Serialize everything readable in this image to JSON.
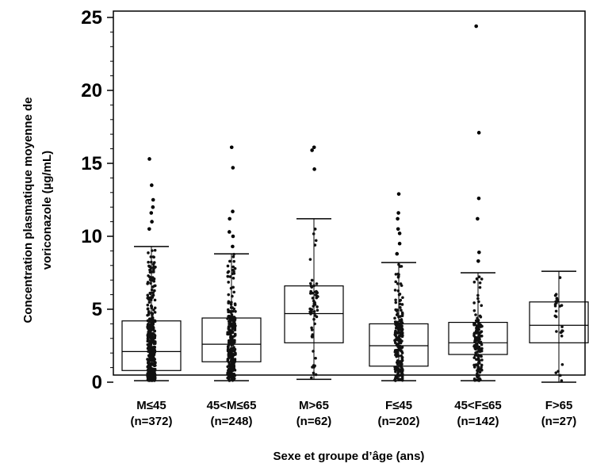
{
  "chart_data": {
    "type": "box",
    "title": "",
    "xlabel": "Sexe et groupe d’âge (ans)",
    "ylabel_lines": [
      "Concentration plasmatique moyenne de",
      "voriconazole (µg/mL)"
    ],
    "ylim": [
      0,
      25
    ],
    "yticks": [
      "0",
      "5",
      "10",
      "15",
      "20",
      "25"
    ],
    "grid": false,
    "categories": [
      {
        "label": "M≤45",
        "n": "(n=372)"
      },
      {
        "label": "45<M≤65",
        "n": "(n=248)"
      },
      {
        "label": "M>65",
        "n": "(n=62)"
      },
      {
        "label": "F≤45",
        "n": "(n=202)"
      },
      {
        "label": "45<F≤65",
        "n": "(n=142)"
      },
      {
        "label": "F>65",
        "n": "(n=27)"
      }
    ],
    "boxes": [
      {
        "whisker_low": 0.1,
        "q1": 0.8,
        "median": 2.1,
        "q3": 4.2,
        "whisker_high": 9.3,
        "outliers": [
          10.5,
          11.0,
          11.6,
          12.0,
          12.5,
          13.5,
          15.3
        ]
      },
      {
        "whisker_low": 0.1,
        "q1": 1.4,
        "median": 2.6,
        "q3": 4.4,
        "whisker_high": 8.8,
        "outliers": [
          9.3,
          10.0,
          10.3,
          11.2,
          11.7,
          14.7,
          16.1
        ]
      },
      {
        "whisker_low": 0.2,
        "q1": 2.7,
        "median": 4.7,
        "q3": 6.6,
        "whisker_high": 11.2,
        "outliers": [
          14.6,
          15.9,
          16.1
        ]
      },
      {
        "whisker_low": 0.1,
        "q1": 1.1,
        "median": 2.5,
        "q3": 4.0,
        "whisker_high": 8.2,
        "outliers": [
          8.8,
          9.5,
          10.2,
          10.5,
          11.2,
          11.6,
          12.9
        ]
      },
      {
        "whisker_low": 0.1,
        "q1": 1.9,
        "median": 2.7,
        "q3": 4.1,
        "whisker_high": 7.5,
        "outliers": [
          8.3,
          8.9,
          11.2,
          12.6,
          17.1,
          24.4
        ]
      },
      {
        "whisker_low": 0.0,
        "q1": 2.7,
        "median": 3.9,
        "q3": 5.5,
        "whisker_high": 7.6,
        "outliers": []
      }
    ]
  }
}
